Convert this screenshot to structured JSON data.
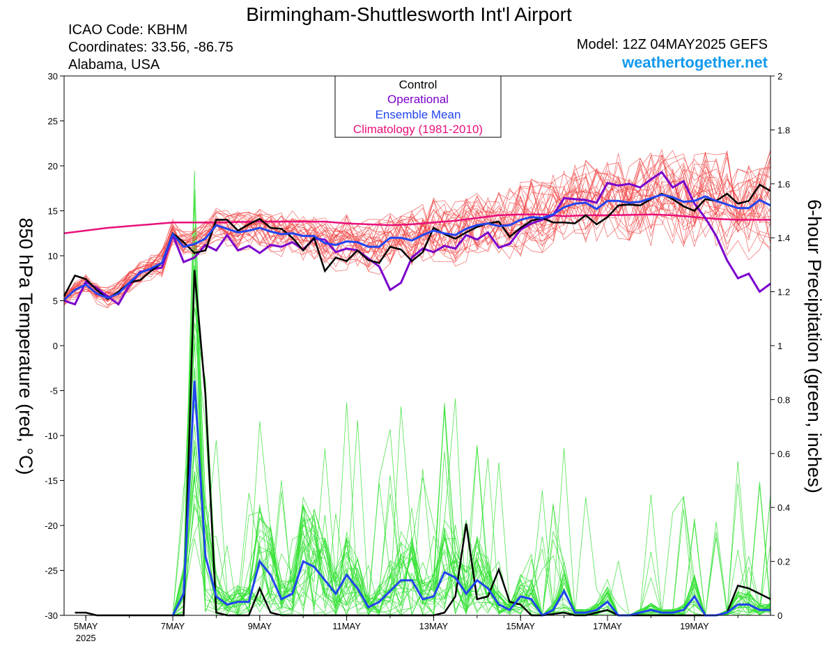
{
  "header": {
    "title": "Birmingham-Shuttlesworth Int'l Airport",
    "icao": "ICAO Code: KBHM",
    "coordinates": "Coordinates: 33.56, -86.75",
    "region": "Alabama, USA",
    "model": "Model: 12Z 04MAY2025 GEFS",
    "site": "weathertogether.net"
  },
  "colors": {
    "temp_members": "#f04040",
    "precip_members": "#33e033",
    "control": "#000000",
    "operational": "#7a00cc",
    "ensemble_mean": "#2244ee",
    "climatology": "#e8107a",
    "site": "#1199ee"
  },
  "chart_data": {
    "type": "line",
    "left_axis": {
      "label": "850 hPa Temperature (red, °C)",
      "range": [
        -30,
        30
      ],
      "ticks": [
        "30",
        "25",
        "20",
        "15",
        "10",
        "5",
        "0",
        "-5",
        "-10",
        "-15",
        "-20",
        "-25",
        "-30"
      ]
    },
    "right_axis": {
      "label": "6-hour Precipitation (green, inches)",
      "range": [
        0,
        2
      ],
      "ticks": [
        "2",
        "1.8",
        "1.6",
        "1.4",
        "1.2",
        "1",
        "0.8",
        "0.6",
        "0.4",
        "0.2",
        "0"
      ]
    },
    "x_axis": {
      "range_days": [
        4.5,
        20.75
      ],
      "ticks": [
        {
          "day": 5,
          "label": "5MAY",
          "sublabel": "2025"
        },
        {
          "day": 7,
          "label": "7MAY"
        },
        {
          "day": 9,
          "label": "9MAY"
        },
        {
          "day": 11,
          "label": "11MAY"
        },
        {
          "day": 13,
          "label": "13MAY"
        },
        {
          "day": 15,
          "label": "15MAY"
        },
        {
          "day": 17,
          "label": "17MAY"
        },
        {
          "day": 19,
          "label": "19MAY"
        }
      ]
    },
    "legend": [
      "Control",
      "Operational",
      "Ensemble Mean",
      "Climatology (1981-2010)"
    ],
    "series": {
      "control_temp": [
        [
          4.5,
          5.5
        ],
        [
          4.75,
          7.8
        ],
        [
          5.0,
          7.4
        ],
        [
          5.25,
          6.2
        ],
        [
          5.5,
          5.2
        ],
        [
          5.75,
          6.0
        ],
        [
          6.0,
          7.0
        ],
        [
          6.25,
          7.3
        ],
        [
          6.5,
          8.3
        ],
        [
          6.75,
          9.2
        ],
        [
          7.0,
          12.5
        ],
        [
          7.25,
          11.5
        ],
        [
          7.5,
          10.3
        ],
        [
          7.75,
          10.6
        ],
        [
          8.0,
          14.0
        ],
        [
          8.25,
          14.0
        ],
        [
          8.5,
          12.8
        ],
        [
          8.75,
          13.5
        ],
        [
          9.0,
          14.1
        ],
        [
          9.25,
          13.1
        ],
        [
          9.5,
          13.0
        ],
        [
          9.75,
          12.0
        ],
        [
          10.0,
          10.6
        ],
        [
          10.25,
          12.0
        ],
        [
          10.5,
          8.3
        ],
        [
          10.75,
          9.8
        ],
        [
          11.0,
          9.4
        ],
        [
          11.25,
          10.6
        ],
        [
          11.5,
          9.5
        ],
        [
          11.75,
          9.2
        ],
        [
          12.0,
          11.0
        ],
        [
          12.25,
          10.7
        ],
        [
          12.5,
          9.4
        ],
        [
          12.75,
          10.4
        ],
        [
          13.0,
          13.1
        ],
        [
          13.25,
          12.4
        ],
        [
          13.5,
          11.9
        ],
        [
          13.75,
          12.6
        ],
        [
          14.0,
          13.2
        ],
        [
          14.25,
          13.6
        ],
        [
          14.5,
          13.8
        ],
        [
          14.75,
          12.1
        ],
        [
          15.0,
          13.1
        ],
        [
          15.25,
          13.9
        ],
        [
          15.5,
          14.2
        ],
        [
          15.75,
          13.7
        ],
        [
          16.0,
          13.7
        ],
        [
          16.25,
          13.6
        ],
        [
          16.5,
          14.5
        ],
        [
          16.75,
          13.5
        ],
        [
          17.0,
          14.3
        ],
        [
          17.25,
          15.6
        ],
        [
          17.5,
          15.7
        ],
        [
          17.75,
          15.6
        ],
        [
          18.0,
          16.3
        ],
        [
          18.25,
          16.9
        ],
        [
          18.5,
          16.3
        ],
        [
          18.75,
          15.5
        ],
        [
          19.0,
          15.0
        ],
        [
          19.25,
          16.3
        ],
        [
          19.5,
          16.1
        ],
        [
          19.75,
          16.9
        ],
        [
          20.0,
          15.8
        ],
        [
          20.25,
          16.1
        ],
        [
          20.5,
          17.9
        ],
        [
          20.75,
          17.2
        ]
      ],
      "operational_temp": [
        [
          4.5,
          5.0
        ],
        [
          4.75,
          4.6
        ],
        [
          5.0,
          7.1
        ],
        [
          5.25,
          6.4
        ],
        [
          5.5,
          5.5
        ],
        [
          5.75,
          4.6
        ],
        [
          6.0,
          6.7
        ],
        [
          6.25,
          8.2
        ],
        [
          6.5,
          8.5
        ],
        [
          6.75,
          8.7
        ],
        [
          7.0,
          12.3
        ],
        [
          7.25,
          9.3
        ],
        [
          7.5,
          9.8
        ],
        [
          7.75,
          11.2
        ],
        [
          8.0,
          10.6
        ],
        [
          8.25,
          12.3
        ],
        [
          8.5,
          10.6
        ],
        [
          8.75,
          11.1
        ],
        [
          9.0,
          10.3
        ],
        [
          9.25,
          11.2
        ],
        [
          9.5,
          11.0
        ],
        [
          9.75,
          11.5
        ],
        [
          10.0,
          10.7
        ],
        [
          10.25,
          11.9
        ],
        [
          10.5,
          11.8
        ],
        [
          10.75,
          10.4
        ],
        [
          11.0,
          10.8
        ],
        [
          11.25,
          10.6
        ],
        [
          11.5,
          9.7
        ],
        [
          11.75,
          8.8
        ],
        [
          12.0,
          6.2
        ],
        [
          12.25,
          7.0
        ],
        [
          12.5,
          9.8
        ],
        [
          12.75,
          10.8
        ],
        [
          13.0,
          10.4
        ],
        [
          13.25,
          11.1
        ],
        [
          13.5,
          10.8
        ],
        [
          13.75,
          12.3
        ],
        [
          14.0,
          11.8
        ],
        [
          14.25,
          12.6
        ],
        [
          14.5,
          10.9
        ],
        [
          14.75,
          11.3
        ],
        [
          15.0,
          12.9
        ],
        [
          15.25,
          13.6
        ],
        [
          15.5,
          14.0
        ],
        [
          15.75,
          14.5
        ],
        [
          16.0,
          16.4
        ],
        [
          16.25,
          16.3
        ],
        [
          16.5,
          16.2
        ],
        [
          16.75,
          15.9
        ],
        [
          17.0,
          18.1
        ],
        [
          17.25,
          17.8
        ],
        [
          17.5,
          18.0
        ],
        [
          17.75,
          17.6
        ],
        [
          18.0,
          18.5
        ],
        [
          18.25,
          19.3
        ],
        [
          18.5,
          17.6
        ],
        [
          18.75,
          18.3
        ],
        [
          19.0,
          15.8
        ],
        [
          19.25,
          14.2
        ],
        [
          19.5,
          12.2
        ],
        [
          19.75,
          9.5
        ],
        [
          20.0,
          7.5
        ],
        [
          20.25,
          8.0
        ],
        [
          20.5,
          6.0
        ],
        [
          20.75,
          6.9
        ]
      ],
      "mean_temp": [
        [
          4.5,
          5.1
        ],
        [
          4.75,
          6.2
        ],
        [
          5.0,
          6.8
        ],
        [
          5.25,
          5.8
        ],
        [
          5.5,
          5.3
        ],
        [
          5.75,
          5.8
        ],
        [
          6.0,
          7.0
        ],
        [
          6.25,
          8.1
        ],
        [
          6.5,
          8.6
        ],
        [
          6.75,
          9.2
        ],
        [
          7.0,
          12.4
        ],
        [
          7.25,
          11.0
        ],
        [
          7.5,
          11.3
        ],
        [
          7.75,
          11.9
        ],
        [
          8.0,
          13.4
        ],
        [
          8.25,
          13.0
        ],
        [
          8.5,
          12.6
        ],
        [
          8.75,
          12.8
        ],
        [
          9.0,
          13.1
        ],
        [
          9.25,
          12.7
        ],
        [
          9.5,
          12.4
        ],
        [
          9.75,
          12.5
        ],
        [
          10.0,
          12.2
        ],
        [
          10.25,
          12.2
        ],
        [
          10.5,
          11.4
        ],
        [
          10.75,
          11.2
        ],
        [
          11.0,
          11.6
        ],
        [
          11.25,
          11.5
        ],
        [
          11.5,
          11.0
        ],
        [
          11.75,
          11.0
        ],
        [
          12.0,
          12.0
        ],
        [
          12.25,
          12.0
        ],
        [
          12.5,
          11.7
        ],
        [
          12.75,
          12.3
        ],
        [
          13.0,
          12.8
        ],
        [
          13.25,
          12.5
        ],
        [
          13.5,
          12.3
        ],
        [
          13.75,
          13.0
        ],
        [
          14.0,
          13.4
        ],
        [
          14.25,
          13.6
        ],
        [
          14.5,
          13.3
        ],
        [
          14.75,
          13.4
        ],
        [
          15.0,
          14.0
        ],
        [
          15.25,
          14.3
        ],
        [
          15.5,
          14.2
        ],
        [
          15.75,
          14.6
        ],
        [
          16.0,
          15.4
        ],
        [
          16.25,
          15.8
        ],
        [
          16.5,
          15.9
        ],
        [
          16.75,
          15.2
        ],
        [
          17.0,
          16.1
        ],
        [
          17.25,
          16.1
        ],
        [
          17.5,
          15.9
        ],
        [
          17.75,
          16.0
        ],
        [
          18.0,
          16.4
        ],
        [
          18.25,
          16.8
        ],
        [
          18.5,
          16.5
        ],
        [
          18.75,
          16.0
        ],
        [
          19.0,
          16.1
        ],
        [
          19.25,
          16.6
        ],
        [
          19.5,
          16.1
        ],
        [
          19.75,
          15.7
        ],
        [
          20.0,
          15.3
        ],
        [
          20.25,
          15.3
        ],
        [
          20.5,
          16.2
        ],
        [
          20.75,
          15.6
        ]
      ],
      "climatology_temp": [
        [
          4.5,
          12.5
        ],
        [
          5.0,
          12.8
        ],
        [
          5.5,
          13.1
        ],
        [
          6.0,
          13.3
        ],
        [
          6.5,
          13.5
        ],
        [
          7.0,
          13.7
        ],
        [
          8.0,
          13.7
        ],
        [
          9.0,
          13.8
        ],
        [
          10.0,
          13.8
        ],
        [
          10.5,
          13.8
        ],
        [
          11.0,
          13.6
        ],
        [
          11.5,
          13.5
        ],
        [
          12.0,
          13.4
        ],
        [
          12.5,
          13.5
        ],
        [
          13.0,
          13.7
        ],
        [
          13.5,
          13.9
        ],
        [
          14.0,
          14.2
        ],
        [
          14.5,
          14.5
        ],
        [
          15.0,
          14.6
        ],
        [
          15.5,
          14.6
        ],
        [
          16.0,
          14.4
        ],
        [
          16.5,
          14.5
        ],
        [
          17.0,
          14.5
        ],
        [
          18.0,
          14.6
        ],
        [
          18.5,
          14.5
        ],
        [
          19.0,
          14.3
        ],
        [
          19.5,
          14.1
        ],
        [
          20.0,
          14.0
        ],
        [
          20.75,
          14.0
        ]
      ],
      "control_precip": [
        [
          4.75,
          0.01
        ],
        [
          5.0,
          0.01
        ],
        [
          5.25,
          0
        ],
        [
          5.5,
          0
        ],
        [
          6.0,
          0
        ],
        [
          6.5,
          0
        ],
        [
          7.0,
          0
        ],
        [
          7.25,
          0
        ],
        [
          7.5,
          1.28
        ],
        [
          7.75,
          0.82
        ],
        [
          8.0,
          0.01
        ],
        [
          8.25,
          0
        ],
        [
          8.5,
          0
        ],
        [
          8.75,
          0
        ],
        [
          9.0,
          0.1
        ],
        [
          9.25,
          0.01
        ],
        [
          9.5,
          0
        ],
        [
          10.0,
          0
        ],
        [
          10.5,
          0
        ],
        [
          11.0,
          0
        ],
        [
          11.5,
          0
        ],
        [
          12.0,
          0
        ],
        [
          12.5,
          0
        ],
        [
          13.0,
          0
        ],
        [
          13.25,
          0.01
        ],
        [
          13.5,
          0.07
        ],
        [
          13.75,
          0.34
        ],
        [
          14.0,
          0.06
        ],
        [
          14.25,
          0.07
        ],
        [
          14.5,
          0.17
        ],
        [
          14.75,
          0.05
        ],
        [
          15.0,
          0.04
        ],
        [
          15.25,
          0
        ],
        [
          15.5,
          0
        ],
        [
          16.0,
          0.01
        ],
        [
          16.25,
          0
        ],
        [
          16.5,
          0
        ],
        [
          17.0,
          0.02
        ],
        [
          17.25,
          0
        ],
        [
          17.5,
          0
        ],
        [
          18.0,
          0
        ],
        [
          18.5,
          0
        ],
        [
          19.0,
          0
        ],
        [
          19.25,
          0
        ],
        [
          19.5,
          0
        ],
        [
          19.75,
          0.01
        ],
        [
          20.0,
          0.11
        ],
        [
          20.25,
          0.1
        ],
        [
          20.5,
          0.08
        ],
        [
          20.75,
          0.06
        ]
      ],
      "mean_precip": [
        [
          7.0,
          0
        ],
        [
          7.25,
          0.08
        ],
        [
          7.5,
          0.87
        ],
        [
          7.75,
          0.22
        ],
        [
          8.0,
          0.07
        ],
        [
          8.25,
          0.04
        ],
        [
          8.5,
          0.05
        ],
        [
          8.75,
          0.05
        ],
        [
          9.0,
          0.2
        ],
        [
          9.25,
          0.15
        ],
        [
          9.5,
          0.06
        ],
        [
          9.75,
          0.08
        ],
        [
          10.0,
          0.2
        ],
        [
          10.25,
          0.18
        ],
        [
          10.5,
          0.13
        ],
        [
          10.75,
          0.08
        ],
        [
          11.0,
          0.15
        ],
        [
          11.25,
          0.1
        ],
        [
          11.5,
          0.03
        ],
        [
          11.75,
          0.05
        ],
        [
          12.0,
          0.09
        ],
        [
          12.25,
          0.13
        ],
        [
          12.5,
          0.13
        ],
        [
          12.75,
          0.06
        ],
        [
          13.0,
          0.07
        ],
        [
          13.25,
          0.16
        ],
        [
          13.5,
          0.14
        ],
        [
          13.75,
          0.08
        ],
        [
          14.0,
          0.13
        ],
        [
          14.25,
          0.1
        ],
        [
          14.5,
          0.04
        ],
        [
          14.75,
          0.02
        ],
        [
          15.0,
          0.07
        ],
        [
          15.25,
          0.06
        ],
        [
          15.5,
          0
        ],
        [
          15.75,
          0.02
        ],
        [
          16.0,
          0.09
        ],
        [
          16.25,
          0.01
        ],
        [
          16.5,
          0.01
        ],
        [
          16.75,
          0.02
        ],
        [
          17.0,
          0.05
        ],
        [
          17.25,
          0
        ],
        [
          17.5,
          0
        ],
        [
          17.75,
          0.01
        ],
        [
          18.0,
          0.02
        ],
        [
          18.25,
          0.01
        ],
        [
          18.5,
          0.01
        ],
        [
          18.75,
          0.02
        ],
        [
          19.0,
          0.07
        ],
        [
          19.25,
          0
        ],
        [
          19.5,
          0
        ],
        [
          19.75,
          0.01
        ],
        [
          20.0,
          0.04
        ],
        [
          20.25,
          0.04
        ],
        [
          20.5,
          0.02
        ],
        [
          20.75,
          0.02
        ]
      ]
    }
  }
}
